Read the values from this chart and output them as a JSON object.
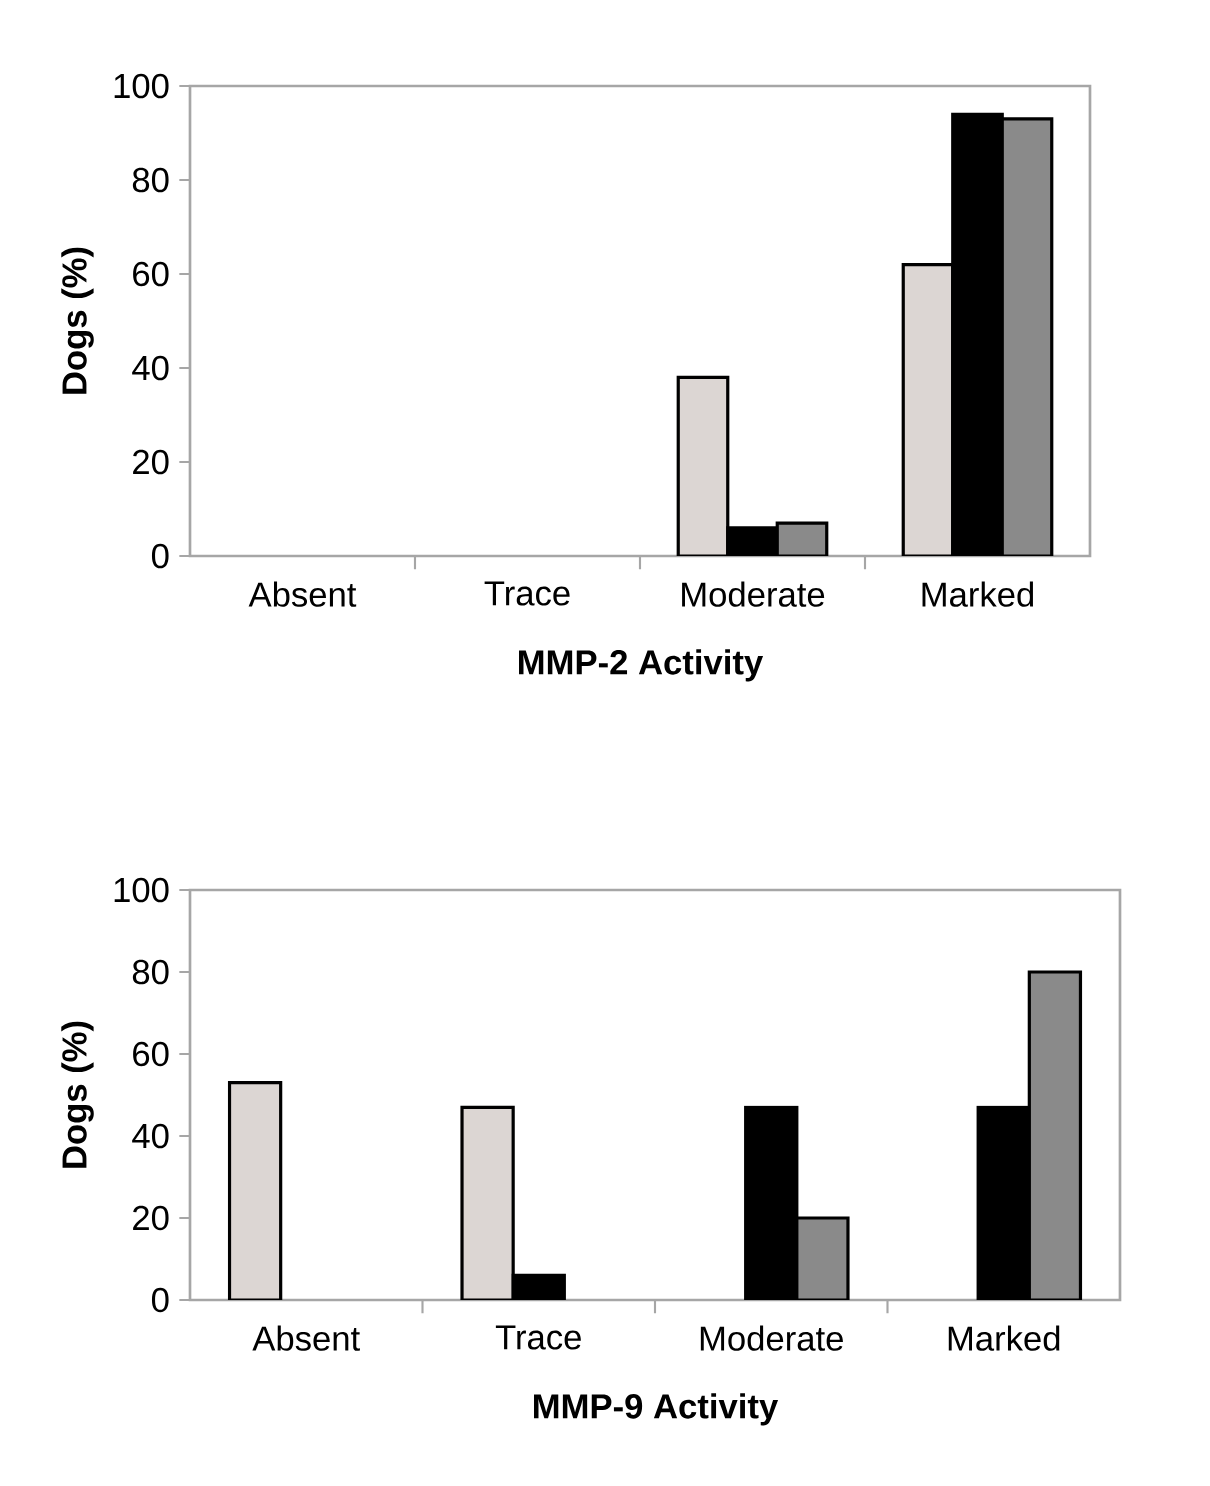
{
  "chart_data": [
    {
      "type": "bar",
      "xlabel": "MMP-2 Activity",
      "ylabel": "Dogs (%)",
      "categories": [
        "Absent",
        "Trace",
        "Moderate",
        "Marked"
      ],
      "ylim": [
        0,
        100
      ],
      "yticks": [
        0,
        20,
        40,
        60,
        80,
        100
      ],
      "series": [
        {
          "color": "#dcd6d3",
          "values": [
            0,
            0,
            38,
            62
          ]
        },
        {
          "color": "#000000",
          "values": [
            0,
            0,
            6,
            94
          ]
        },
        {
          "color": "#8a8a8a",
          "values": [
            0,
            0,
            7,
            93
          ]
        }
      ]
    },
    {
      "type": "bar",
      "xlabel": "MMP-9 Activity",
      "ylabel": "Dogs (%)",
      "categories": [
        "Absent",
        "Trace",
        "Moderate",
        "Marked"
      ],
      "ylim": [
        0,
        100
      ],
      "yticks": [
        0,
        20,
        40,
        60,
        80,
        100
      ],
      "series": [
        {
          "color": "#dcd6d3",
          "values": [
            53,
            47,
            0,
            0
          ]
        },
        {
          "color": "#000000",
          "values": [
            0,
            6,
            47,
            47
          ]
        },
        {
          "color": "#8a8a8a",
          "values": [
            0,
            0,
            20,
            80
          ]
        }
      ]
    }
  ]
}
